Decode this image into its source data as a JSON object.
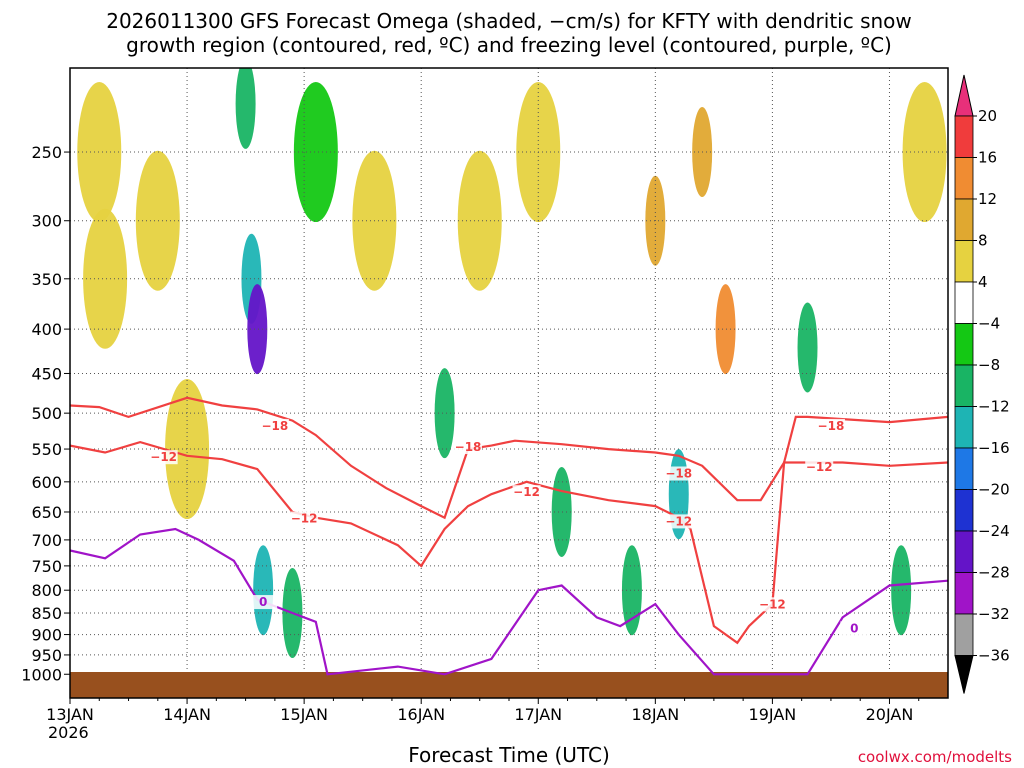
{
  "chart_data": {
    "type": "heatmap",
    "title": [
      "2026011300 GFS Forecast Omega (shaded, −cm/s) for KFTY with dendritic snow",
      "growth region (contoured, red, ºC) and freezing level (contoured, purple, ºC)"
    ],
    "xlabel": "Forecast Time (UTC)",
    "ylabel": "",
    "credit": "coolwx.com/modelts",
    "x_ticks": [
      "13JAN",
      "14JAN",
      "15JAN",
      "16JAN",
      "17JAN",
      "18JAN",
      "19JAN",
      "20JAN"
    ],
    "x_year_label": "2026",
    "xlim_days": [
      0,
      7.5
    ],
    "y_ticks": [
      250,
      300,
      350,
      400,
      450,
      500,
      550,
      600,
      650,
      700,
      750,
      800,
      850,
      900,
      950,
      1000
    ],
    "ylim_hpa": [
      200,
      1000
    ],
    "y_scale": "log-pressure",
    "grid": true,
    "colorbar": {
      "labels": [
        "20",
        "16",
        "12",
        "8",
        "4",
        "−4",
        "−8",
        "−12",
        "−16",
        "−20",
        "−24",
        "−28",
        "−32",
        "−36"
      ],
      "colors": [
        "#e8307a",
        "#f03c3c",
        "#f08c32",
        "#e0a830",
        "#e6d240",
        "#ffffff",
        "#14c814",
        "#19b464",
        "#1eb4b4",
        "#1e78e6",
        "#1e32d2",
        "#6414c8",
        "#a014c8",
        "#a0a0a0",
        "#000000"
      ]
    },
    "omega_cells": [
      {
        "day": 0.25,
        "p": 250,
        "v": 4
      },
      {
        "day": 0.3,
        "p": 350,
        "v": 4
      },
      {
        "day": 0.75,
        "p": 300,
        "v": 4
      },
      {
        "day": 1.0,
        "p": 550,
        "v": 4
      },
      {
        "day": 1.55,
        "p": 350,
        "v": -12
      },
      {
        "day": 1.6,
        "p": 400,
        "v": -24
      },
      {
        "day": 1.5,
        "p": 220,
        "v": -8
      },
      {
        "day": 1.65,
        "p": 800,
        "v": -12
      },
      {
        "day": 1.9,
        "p": 850,
        "v": -8
      },
      {
        "day": 2.1,
        "p": 250,
        "v": -4
      },
      {
        "day": 2.6,
        "p": 300,
        "v": 4
      },
      {
        "day": 3.2,
        "p": 500,
        "v": -8
      },
      {
        "day": 3.5,
        "p": 300,
        "v": 4
      },
      {
        "day": 4.0,
        "p": 250,
        "v": 4
      },
      {
        "day": 4.2,
        "p": 650,
        "v": -8
      },
      {
        "day": 4.8,
        "p": 800,
        "v": -8
      },
      {
        "day": 5.0,
        "p": 300,
        "v": 8
      },
      {
        "day": 5.2,
        "p": 620,
        "v": -12
      },
      {
        "day": 5.6,
        "p": 400,
        "v": 12
      },
      {
        "day": 5.4,
        "p": 250,
        "v": 8
      },
      {
        "day": 6.3,
        "p": 420,
        "v": -8
      },
      {
        "day": 7.1,
        "p": 800,
        "v": -8
      },
      {
        "day": 7.3,
        "p": 250,
        "v": 4
      }
    ],
    "series": [
      {
        "name": "-18",
        "color": "#f04040",
        "x": [
          0,
          0.25,
          0.5,
          1.0,
          1.3,
          1.6,
          1.9,
          2.1,
          2.4,
          2.7,
          3.0,
          3.2,
          3.4,
          3.6,
          3.8,
          4.2,
          4.6,
          5.0,
          5.2,
          5.4,
          5.7,
          5.9,
          6.1,
          6.2,
          6.3,
          6.6,
          7.0,
          7.5
        ],
        "y": [
          490,
          492,
          505,
          480,
          490,
          495,
          510,
          530,
          575,
          610,
          640,
          660,
          550,
          545,
          538,
          543,
          550,
          555,
          560,
          575,
          630,
          630,
          570,
          505,
          505,
          508,
          512,
          505
        ]
      },
      {
        "name": "-12",
        "color": "#f04040",
        "x": [
          0,
          0.3,
          0.6,
          1.0,
          1.3,
          1.6,
          1.9,
          2.1,
          2.4,
          2.8,
          3.0,
          3.2,
          3.4,
          3.6,
          3.9,
          4.2,
          4.6,
          5.0,
          5.2,
          5.3,
          5.5,
          5.7,
          5.8,
          6.0,
          6.1,
          6.3,
          6.6,
          7.0,
          7.5
        ],
        "y": [
          545,
          555,
          540,
          560,
          565,
          580,
          650,
          660,
          670,
          710,
          750,
          680,
          640,
          620,
          600,
          615,
          630,
          640,
          660,
          680,
          880,
          920,
          880,
          830,
          570,
          570,
          570,
          575,
          570
        ]
      },
      {
        "name": "0",
        "color": "#a014c8",
        "x": [
          0,
          0.3,
          0.6,
          0.9,
          1.1,
          1.4,
          1.6,
          1.9,
          2.1,
          2.2,
          2.8,
          3.2,
          3.6,
          4.0,
          4.2,
          4.5,
          4.7,
          5.0,
          5.2,
          5.5,
          6.0,
          6.3,
          6.6,
          7.0,
          7.5
        ],
        "y": [
          720,
          735,
          690,
          680,
          700,
          740,
          820,
          850,
          870,
          1000,
          980,
          1000,
          960,
          800,
          790,
          860,
          880,
          830,
          900,
          1000,
          1000,
          1000,
          860,
          790,
          780
        ]
      }
    ],
    "contour_labels": [
      {
        "text": "−18",
        "day": 1.75,
        "p": 520
      },
      {
        "text": "−12",
        "day": 0.8,
        "p": 565
      },
      {
        "text": "−12",
        "day": 2.0,
        "p": 665
      },
      {
        "text": "−18",
        "day": 3.4,
        "p": 550
      },
      {
        "text": "−12",
        "day": 3.9,
        "p": 620
      },
      {
        "text": "−18",
        "day": 5.2,
        "p": 590
      },
      {
        "text": "−12",
        "day": 5.2,
        "p": 670
      },
      {
        "text": "−12",
        "day": 6.0,
        "p": 835
      },
      {
        "text": "−18",
        "day": 6.5,
        "p": 520
      },
      {
        "text": "−12",
        "day": 6.4,
        "p": 580
      },
      {
        "text": "0",
        "day": 1.65,
        "p": 830
      },
      {
        "text": "0",
        "day": 6.7,
        "p": 890
      }
    ],
    "ground_color": "#98501e"
  }
}
